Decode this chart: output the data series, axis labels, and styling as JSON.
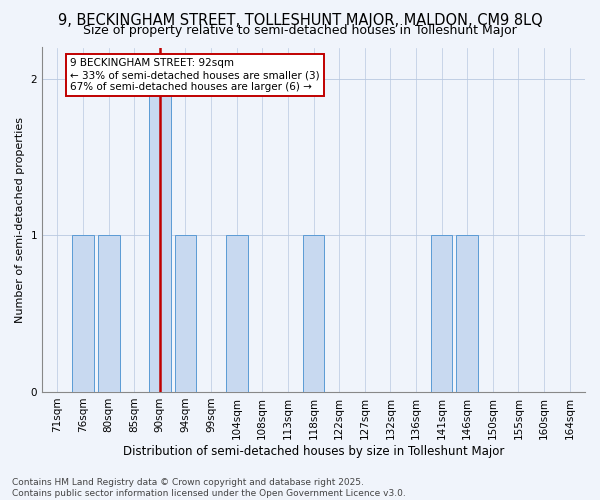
{
  "title": "9, BECKINGHAM STREET, TOLLESHUNT MAJOR, MALDON, CM9 8LQ",
  "subtitle": "Size of property relative to semi-detached houses in Tolleshunt Major",
  "xlabel": "Distribution of semi-detached houses by size in Tolleshunt Major",
  "ylabel": "Number of semi-detached properties",
  "bins": [
    "71sqm",
    "76sqm",
    "80sqm",
    "85sqm",
    "90sqm",
    "94sqm",
    "99sqm",
    "104sqm",
    "108sqm",
    "113sqm",
    "118sqm",
    "122sqm",
    "127sqm",
    "132sqm",
    "136sqm",
    "141sqm",
    "146sqm",
    "150sqm",
    "155sqm",
    "160sqm",
    "164sqm"
  ],
  "counts": [
    0,
    1,
    1,
    0,
    2,
    1,
    0,
    1,
    0,
    0,
    1,
    0,
    0,
    0,
    0,
    1,
    1,
    0,
    0,
    0,
    0
  ],
  "subject_bin_index": 4,
  "subject_label": "92sqm",
  "bar_color": "#c8d9f0",
  "bar_edge_color": "#5b9bd5",
  "subject_line_color": "#c00000",
  "background_color": "#f0f4fb",
  "grid_color": "#b8c8e0",
  "annotation_box_facecolor": "#ffffff",
  "annotation_box_edge": "#c00000",
  "annotation_text": "9 BECKINGHAM STREET: 92sqm\n← 33% of semi-detached houses are smaller (3)\n67% of semi-detached houses are larger (6) →",
  "footer": "Contains HM Land Registry data © Crown copyright and database right 2025.\nContains public sector information licensed under the Open Government Licence v3.0.",
  "ylim": [
    0,
    2.2
  ],
  "yticks": [
    0,
    1,
    2
  ],
  "title_fontsize": 10.5,
  "subtitle_fontsize": 9,
  "xlabel_fontsize": 8.5,
  "ylabel_fontsize": 8,
  "tick_fontsize": 7.5,
  "annotation_fontsize": 7.5,
  "footer_fontsize": 6.5
}
